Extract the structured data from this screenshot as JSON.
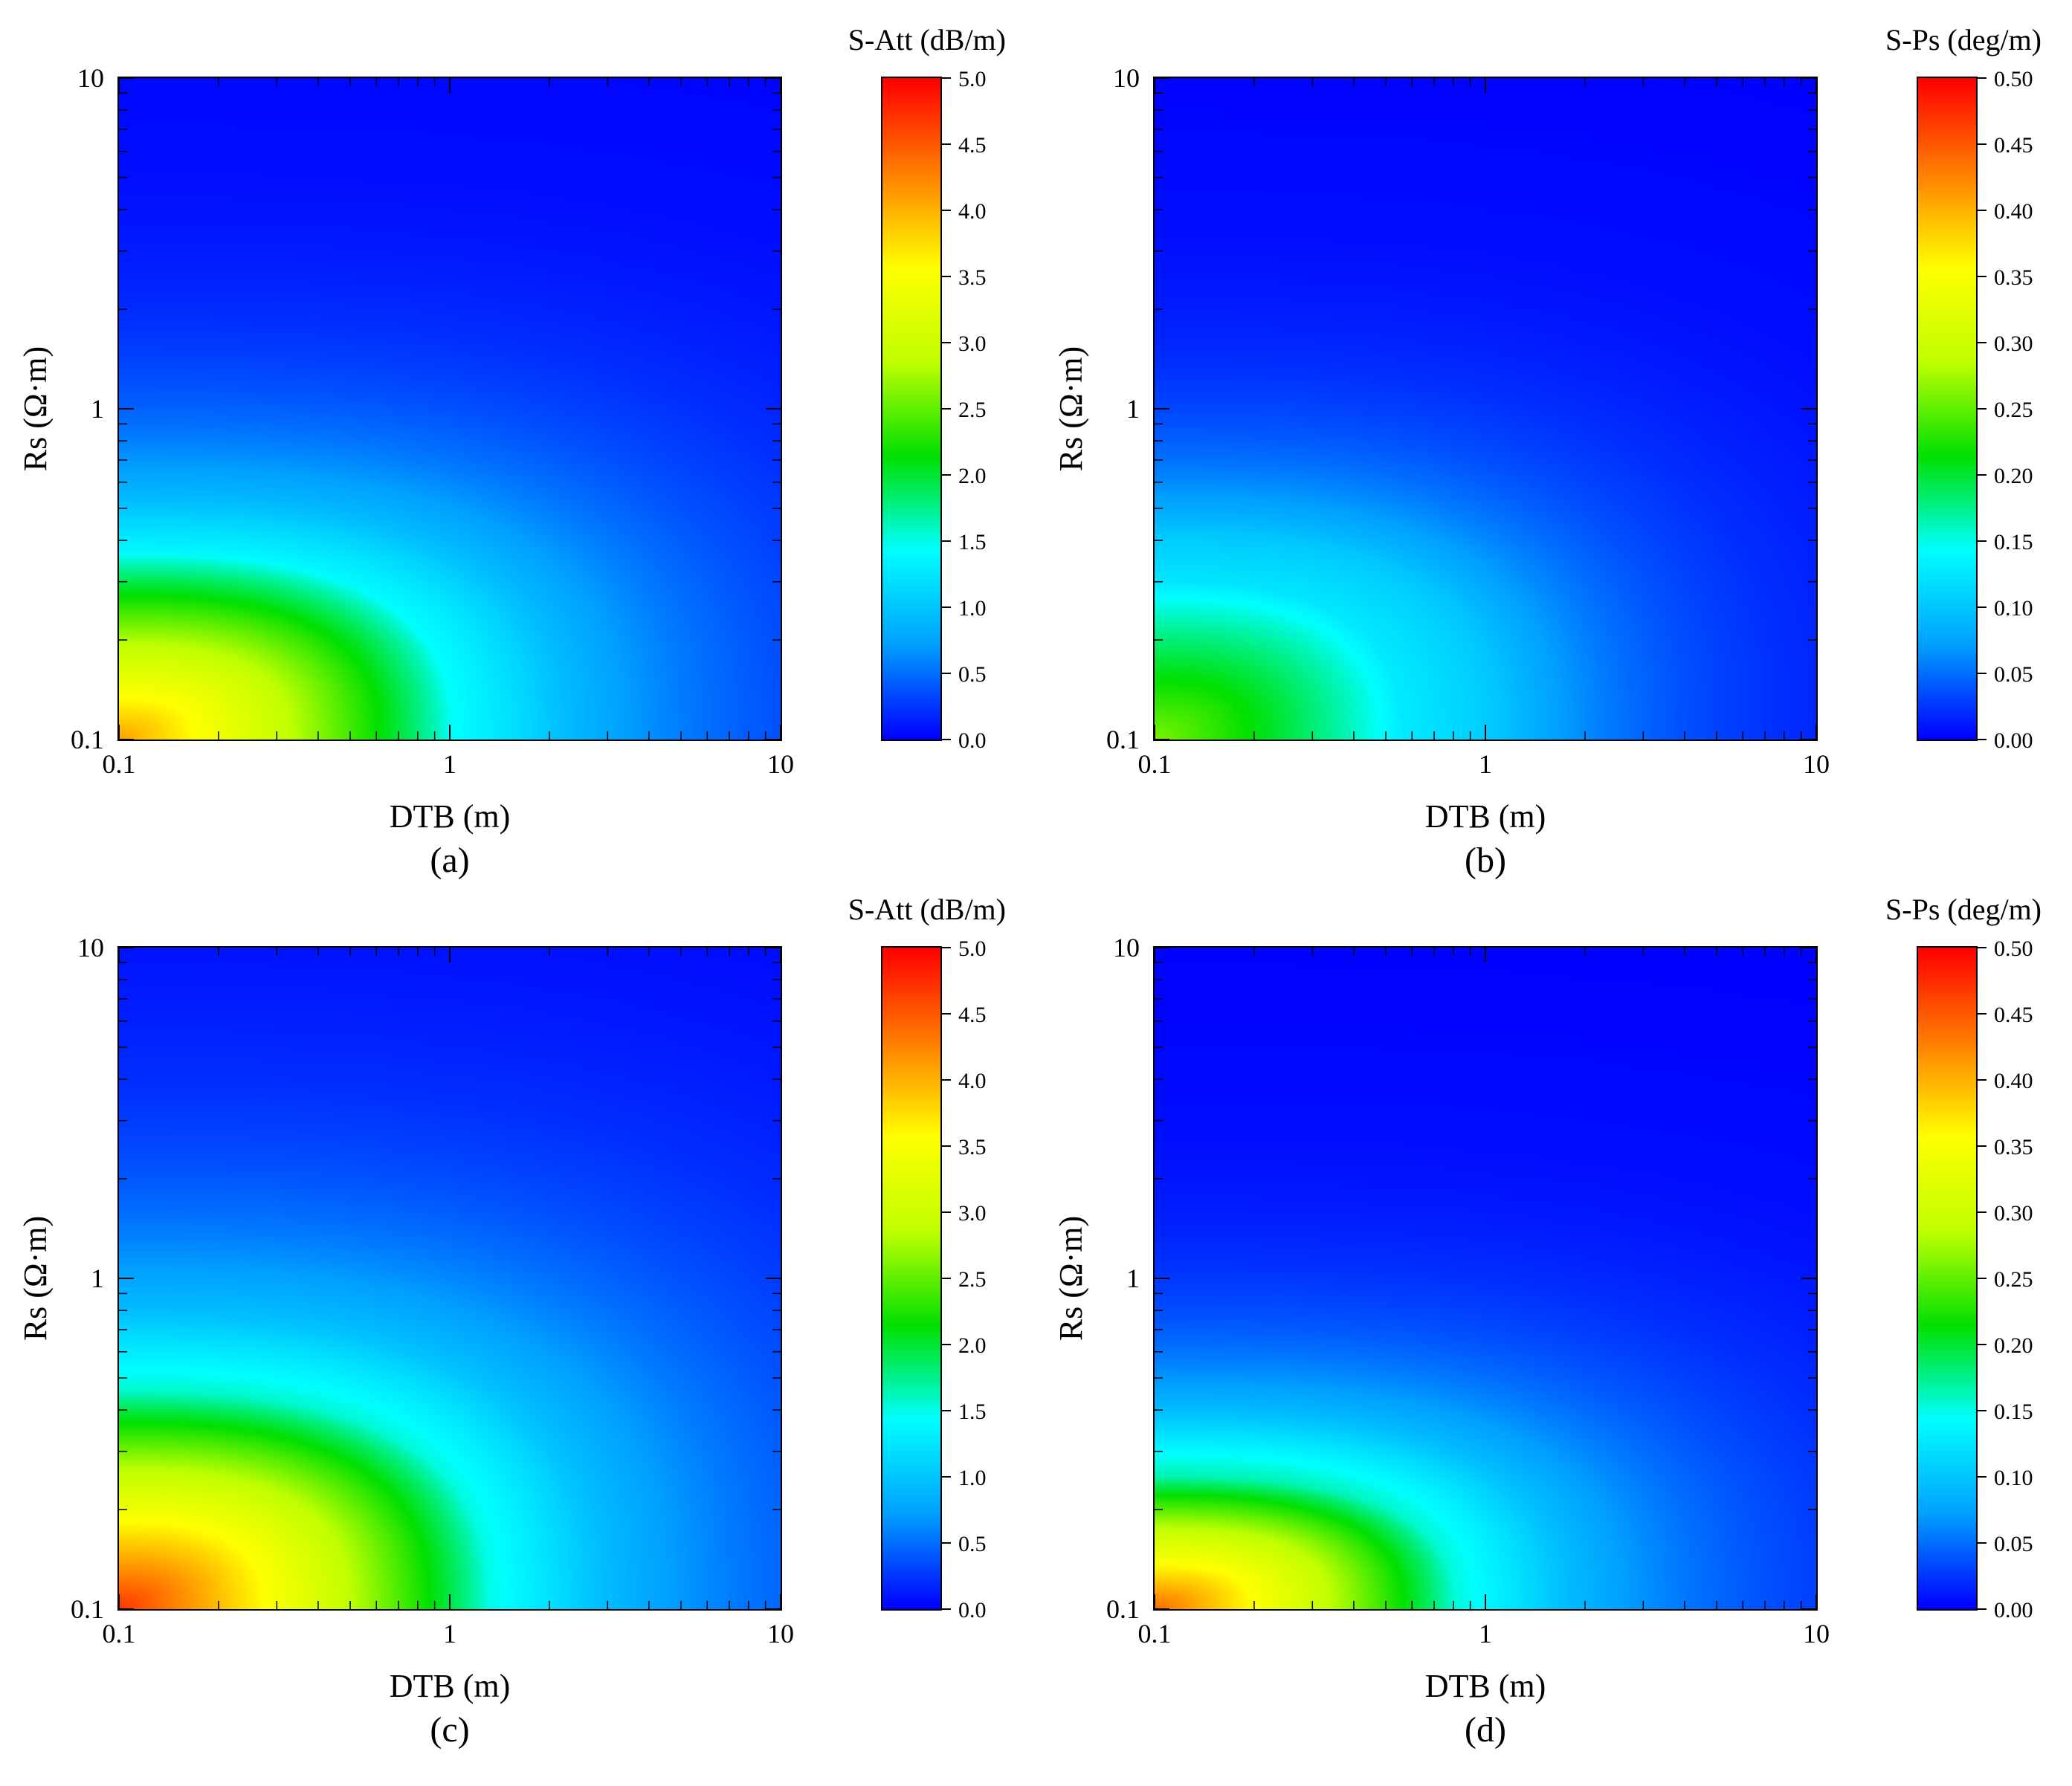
{
  "chart_data": [
    {
      "type": "heatmap",
      "panel_label": "(a)",
      "xlabel": "DTB (m)",
      "ylabel": "Rs (Ω·m)",
      "x_scale": "log",
      "y_scale": "log",
      "xlim": [
        0.1,
        10
      ],
      "ylim": [
        0.1,
        10
      ],
      "x_ticks": [
        "0.1",
        "1",
        "10"
      ],
      "y_ticks": [
        "0.1",
        "1",
        "10"
      ],
      "colorbar": {
        "title": "S-Att (dB/m)",
        "range": [
          0.0,
          5.0
        ],
        "ticks": [
          "0.0",
          "0.5",
          "1.0",
          "1.5",
          "2.0",
          "2.5",
          "3.0",
          "3.5",
          "4.0",
          "4.5",
          "5.0"
        ]
      },
      "field": {
        "peak": 4.1,
        "contour_1p0": {
          "x_at_bottom": 2.0,
          "y_at_left": 0.5
        },
        "green_region": {
          "x_at_bottom": 1.0,
          "y_at_left": 0.37
        }
      }
    },
    {
      "type": "heatmap",
      "panel_label": "(b)",
      "xlabel": "DTB (m)",
      "ylabel": "Rs (Ω·m)",
      "x_scale": "log",
      "y_scale": "log",
      "xlim": [
        0.1,
        10
      ],
      "ylim": [
        0.1,
        10
      ],
      "x_ticks": [
        "0.1",
        "1",
        "10"
      ],
      "y_ticks": [
        "0.1",
        "1",
        "10"
      ],
      "colorbar": {
        "title": "S-Ps (deg/m)",
        "range": [
          0.0,
          0.5
        ],
        "ticks": [
          "0.00",
          "0.05",
          "0.10",
          "0.15",
          "0.20",
          "0.25",
          "0.30",
          "0.35",
          "0.40",
          "0.45",
          "0.50"
        ]
      },
      "field": {
        "peak": 0.26,
        "contour_0p1": {
          "x_at_bottom": 1.1,
          "y_at_left": 0.42
        },
        "green_region": {
          "x_at_bottom": 0.55,
          "y_at_left": 0.3
        }
      }
    },
    {
      "type": "heatmap",
      "panel_label": "(c)",
      "xlabel": "DTB (m)",
      "ylabel": "Rs (Ω·m)",
      "x_scale": "log",
      "y_scale": "log",
      "xlim": [
        0.1,
        10
      ],
      "ylim": [
        0.1,
        10
      ],
      "x_ticks": [
        "0.1",
        "1",
        "10"
      ],
      "y_ticks": [
        "0.1",
        "1",
        "10"
      ],
      "colorbar": {
        "title": "S-Att (dB/m)",
        "range": [
          0.0,
          5.0
        ],
        "ticks": [
          "0.0",
          "0.5",
          "1.0",
          "1.5",
          "2.0",
          "2.5",
          "3.0",
          "3.5",
          "4.0",
          "4.5",
          "5.0"
        ]
      },
      "field": {
        "peak": 4.7,
        "contour_1p0": {
          "x_at_bottom": 2.6,
          "y_at_left": 0.75
        },
        "green_region": {
          "x_at_bottom": 1.3,
          "y_at_left": 0.45
        }
      }
    },
    {
      "type": "heatmap",
      "panel_label": "(d)",
      "xlabel": "DTB (m)",
      "ylabel": "Rs (Ω·m)",
      "x_scale": "log",
      "y_scale": "log",
      "xlim": [
        0.1,
        10
      ],
      "ylim": [
        0.1,
        10
      ],
      "x_ticks": [
        "0.1",
        "1",
        "10"
      ],
      "y_ticks": [
        "0.1",
        "1",
        "10"
      ],
      "colorbar": {
        "title": "S-Ps (deg/m)",
        "range": [
          0.0,
          0.5
        ],
        "ticks": [
          "0.00",
          "0.05",
          "0.10",
          "0.15",
          "0.20",
          "0.25",
          "0.30",
          "0.35",
          "0.40",
          "0.45",
          "0.50"
        ]
      },
      "field": {
        "peak": 0.44,
        "contour_0p1": {
          "x_at_bottom": 1.6,
          "y_at_left": 0.38
        },
        "green_region": {
          "x_at_bottom": 0.8,
          "y_at_left": 0.25
        }
      }
    }
  ],
  "colormap": [
    "#0000ff",
    "#00a0ff",
    "#00ffff",
    "#00e000",
    "#c0ff00",
    "#ffff00",
    "#ff8000",
    "#ff0000"
  ]
}
